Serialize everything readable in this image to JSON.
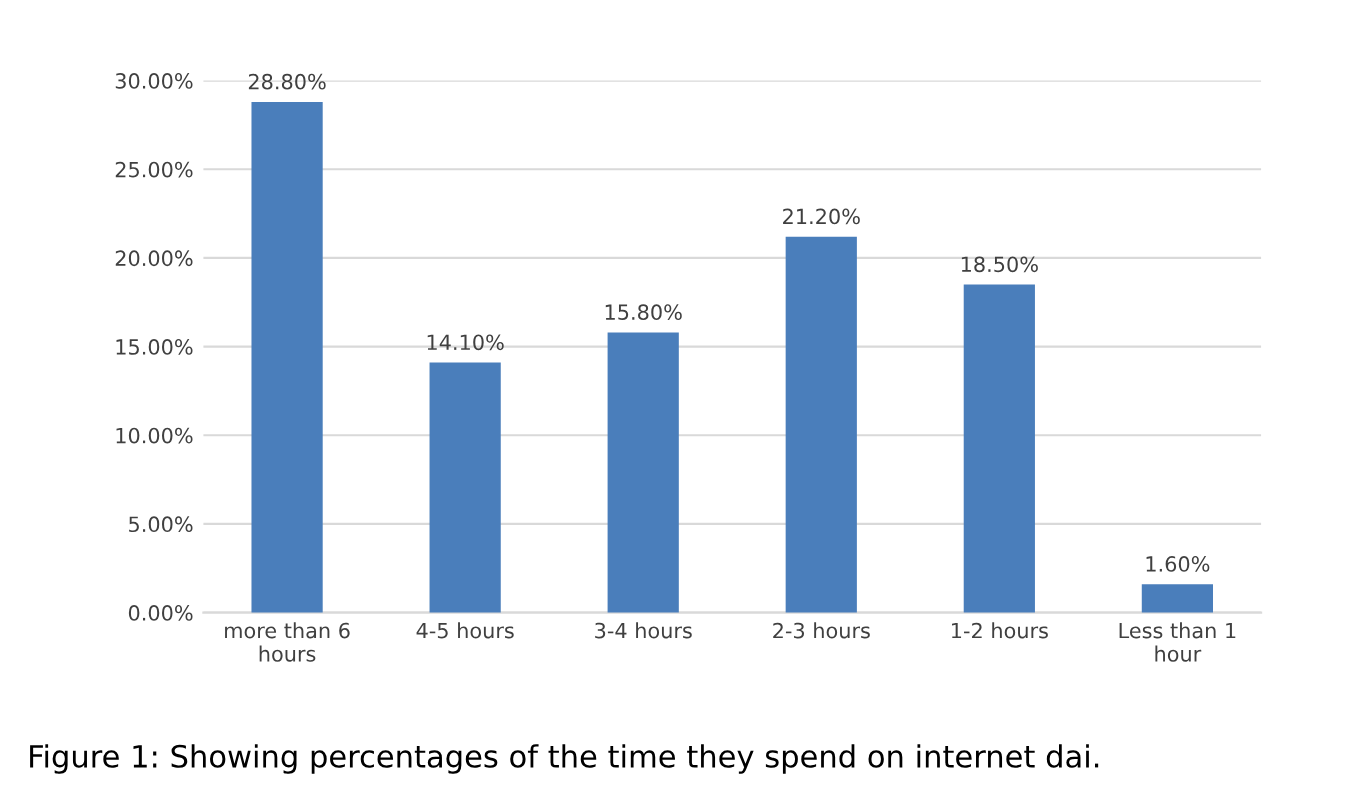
{
  "chart_data": {
    "type": "bar",
    "categories": [
      "more than 6\nhours",
      "4-5 hours",
      "3-4 hours",
      "2-3 hours",
      "1-2 hours",
      "Less than 1\nhour"
    ],
    "values": [
      28.8,
      14.1,
      15.8,
      21.2,
      18.5,
      1.6
    ],
    "value_labels": [
      "28.80%",
      "14.10%",
      "15.80%",
      "21.20%",
      "18.50%",
      "1.60%"
    ],
    "color": "#4a7ebb",
    "ylim": [
      0,
      30
    ],
    "yticks": [
      {
        "value": 0,
        "label": "0.00%"
      },
      {
        "value": 5,
        "label": "5.00%"
      },
      {
        "value": 10,
        "label": "10.00%"
      },
      {
        "value": 15,
        "label": "15.00%"
      },
      {
        "value": 20,
        "label": "20.00%"
      },
      {
        "value": 25,
        "label": "25.00%"
      },
      {
        "value": 30,
        "label": "30.00%"
      }
    ],
    "grid": "y",
    "annotations": [
      "Figure 1: Showing percentages of the time they spend on internet dai."
    ]
  }
}
